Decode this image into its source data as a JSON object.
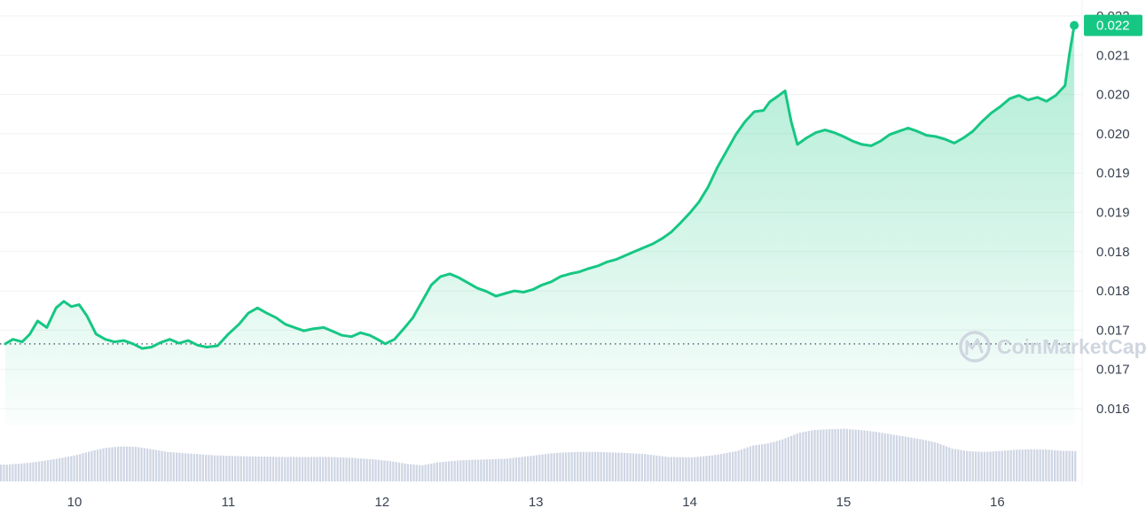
{
  "chart_data": {
    "type": "area",
    "title": "",
    "xlabel": "",
    "ylabel": "",
    "x_ticks": [
      "10",
      "11",
      "12",
      "13",
      "14",
      "15",
      "16"
    ],
    "y_ticks": [
      "0.022",
      "0.021",
      "0.020",
      "0.020",
      "0.019",
      "0.019",
      "0.018",
      "0.018",
      "0.017",
      "0.017",
      "0.016"
    ],
    "x_range_days": [
      9.55,
      16.5
    ],
    "y_range": [
      0.0158,
      0.0222
    ],
    "baseline": 0.01705,
    "current_price_label": "0.022",
    "current_price": 0.02192,
    "series": [
      {
        "points": [
          [
            9.55,
            0.01705
          ],
          [
            9.6,
            0.01712
          ],
          [
            9.66,
            0.01708
          ],
          [
            9.71,
            0.0172
          ],
          [
            9.76,
            0.0174
          ],
          [
            9.82,
            0.0173
          ],
          [
            9.88,
            0.0176
          ],
          [
            9.93,
            0.0177
          ],
          [
            9.98,
            0.01762
          ],
          [
            10.03,
            0.01765
          ],
          [
            10.08,
            0.01748
          ],
          [
            10.14,
            0.0172
          ],
          [
            10.2,
            0.01712
          ],
          [
            10.26,
            0.01708
          ],
          [
            10.32,
            0.0171
          ],
          [
            10.38,
            0.01705
          ],
          [
            10.44,
            0.01698
          ],
          [
            10.5,
            0.017
          ],
          [
            10.56,
            0.01707
          ],
          [
            10.62,
            0.01712
          ],
          [
            10.68,
            0.01706
          ],
          [
            10.74,
            0.0171
          ],
          [
            10.8,
            0.01703
          ],
          [
            10.86,
            0.017
          ],
          [
            10.93,
            0.01702
          ],
          [
            11.0,
            0.0172
          ],
          [
            11.07,
            0.01735
          ],
          [
            11.13,
            0.01752
          ],
          [
            11.19,
            0.0176
          ],
          [
            11.25,
            0.01752
          ],
          [
            11.31,
            0.01745
          ],
          [
            11.37,
            0.01735
          ],
          [
            11.43,
            0.0173
          ],
          [
            11.49,
            0.01725
          ],
          [
            11.55,
            0.01728
          ],
          [
            11.62,
            0.0173
          ],
          [
            11.68,
            0.01724
          ],
          [
            11.74,
            0.01718
          ],
          [
            11.8,
            0.01716
          ],
          [
            11.86,
            0.01722
          ],
          [
            11.92,
            0.01718
          ],
          [
            11.97,
            0.01712
          ],
          [
            12.02,
            0.01705
          ],
          [
            12.08,
            0.01712
          ],
          [
            12.14,
            0.01728
          ],
          [
            12.2,
            0.01745
          ],
          [
            12.26,
            0.0177
          ],
          [
            12.32,
            0.01795
          ],
          [
            12.38,
            0.01808
          ],
          [
            12.44,
            0.01812
          ],
          [
            12.5,
            0.01806
          ],
          [
            12.56,
            0.01798
          ],
          [
            12.62,
            0.0179
          ],
          [
            12.68,
            0.01785
          ],
          [
            12.74,
            0.01778
          ],
          [
            12.8,
            0.01782
          ],
          [
            12.86,
            0.01786
          ],
          [
            12.92,
            0.01784
          ],
          [
            12.98,
            0.01788
          ],
          [
            13.04,
            0.01795
          ],
          [
            13.1,
            0.018
          ],
          [
            13.16,
            0.01808
          ],
          [
            13.22,
            0.01812
          ],
          [
            13.28,
            0.01815
          ],
          [
            13.34,
            0.0182
          ],
          [
            13.4,
            0.01824
          ],
          [
            13.46,
            0.0183
          ],
          [
            13.52,
            0.01834
          ],
          [
            13.58,
            0.0184
          ],
          [
            13.64,
            0.01846
          ],
          [
            13.7,
            0.01852
          ],
          [
            13.76,
            0.01858
          ],
          [
            13.82,
            0.01866
          ],
          [
            13.88,
            0.01876
          ],
          [
            13.94,
            0.0189
          ],
          [
            14.0,
            0.01905
          ],
          [
            14.06,
            0.01922
          ],
          [
            14.12,
            0.01945
          ],
          [
            14.18,
            0.01975
          ],
          [
            14.24,
            0.02
          ],
          [
            14.3,
            0.02025
          ],
          [
            14.36,
            0.02045
          ],
          [
            14.42,
            0.0206
          ],
          [
            14.48,
            0.02062
          ],
          [
            14.52,
            0.02075
          ],
          [
            14.58,
            0.02085
          ],
          [
            14.62,
            0.02092
          ],
          [
            14.66,
            0.02045
          ],
          [
            14.7,
            0.0201
          ],
          [
            14.76,
            0.0202
          ],
          [
            14.82,
            0.02028
          ],
          [
            14.88,
            0.02032
          ],
          [
            14.94,
            0.02028
          ],
          [
            15.0,
            0.02022
          ],
          [
            15.06,
            0.02015
          ],
          [
            15.12,
            0.0201
          ],
          [
            15.18,
            0.02008
          ],
          [
            15.24,
            0.02015
          ],
          [
            15.3,
            0.02025
          ],
          [
            15.36,
            0.0203
          ],
          [
            15.42,
            0.02035
          ],
          [
            15.48,
            0.0203
          ],
          [
            15.54,
            0.02024
          ],
          [
            15.6,
            0.02022
          ],
          [
            15.66,
            0.02018
          ],
          [
            15.72,
            0.02012
          ],
          [
            15.78,
            0.0202
          ],
          [
            15.84,
            0.0203
          ],
          [
            15.9,
            0.02045
          ],
          [
            15.96,
            0.02058
          ],
          [
            16.02,
            0.02068
          ],
          [
            16.08,
            0.0208
          ],
          [
            16.14,
            0.02085
          ],
          [
            16.2,
            0.02078
          ],
          [
            16.26,
            0.02082
          ],
          [
            16.32,
            0.02076
          ],
          [
            16.38,
            0.02085
          ],
          [
            16.44,
            0.021
          ],
          [
            16.47,
            0.0215
          ],
          [
            16.5,
            0.02192
          ]
        ]
      }
    ],
    "volume": {
      "unit": "relative",
      "points": [
        [
          9.55,
          0.4
        ],
        [
          9.7,
          0.44
        ],
        [
          9.85,
          0.52
        ],
        [
          10.0,
          0.62
        ],
        [
          10.1,
          0.72
        ],
        [
          10.2,
          0.8
        ],
        [
          10.3,
          0.83
        ],
        [
          10.4,
          0.82
        ],
        [
          10.5,
          0.76
        ],
        [
          10.6,
          0.7
        ],
        [
          10.75,
          0.66
        ],
        [
          10.9,
          0.62
        ],
        [
          11.05,
          0.6
        ],
        [
          11.2,
          0.59
        ],
        [
          11.35,
          0.58
        ],
        [
          11.5,
          0.58
        ],
        [
          11.65,
          0.58
        ],
        [
          11.8,
          0.56
        ],
        [
          11.95,
          0.52
        ],
        [
          12.05,
          0.48
        ],
        [
          12.15,
          0.42
        ],
        [
          12.25,
          0.38
        ],
        [
          12.35,
          0.45
        ],
        [
          12.5,
          0.5
        ],
        [
          12.65,
          0.52
        ],
        [
          12.8,
          0.54
        ],
        [
          12.95,
          0.6
        ],
        [
          13.1,
          0.67
        ],
        [
          13.25,
          0.7
        ],
        [
          13.4,
          0.7
        ],
        [
          13.55,
          0.68
        ],
        [
          13.7,
          0.65
        ],
        [
          13.85,
          0.58
        ],
        [
          14.0,
          0.57
        ],
        [
          14.15,
          0.62
        ],
        [
          14.3,
          0.72
        ],
        [
          14.4,
          0.85
        ],
        [
          14.5,
          0.9
        ],
        [
          14.6,
          1.0
        ],
        [
          14.7,
          1.15
        ],
        [
          14.8,
          1.22
        ],
        [
          14.9,
          1.24
        ],
        [
          15.0,
          1.25
        ],
        [
          15.1,
          1.22
        ],
        [
          15.2,
          1.18
        ],
        [
          15.3,
          1.12
        ],
        [
          15.4,
          1.06
        ],
        [
          15.5,
          1.0
        ],
        [
          15.6,
          0.92
        ],
        [
          15.7,
          0.78
        ],
        [
          15.8,
          0.72
        ],
        [
          15.9,
          0.7
        ],
        [
          16.0,
          0.72
        ],
        [
          16.1,
          0.75
        ],
        [
          16.2,
          0.76
        ],
        [
          16.3,
          0.76
        ],
        [
          16.4,
          0.73
        ],
        [
          16.5,
          0.72
        ]
      ]
    },
    "colors": {
      "line_up": "#16c784",
      "line_down": "#ea3943",
      "area_top": "#16c784",
      "gridline": "#eff2f5",
      "baseline_dots": "#58667e",
      "volume": "#cfd6e4",
      "price_tag_bg": "#16c784"
    },
    "grid": true,
    "y_axis_position": "right",
    "watermark": "CoinMarketCap"
  }
}
